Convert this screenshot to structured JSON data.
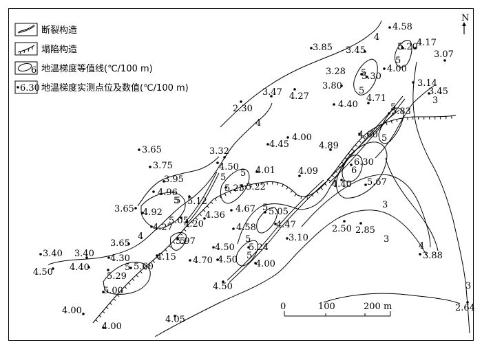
{
  "legend": {
    "fault": "断裂构造",
    "collapse": "塌陷构造",
    "isoline": "地温梯度等值线(℃/100 m)",
    "point": "地温梯度实测点位及数值(℃/100 m)",
    "isoline_sample": "6",
    "point_sample": "6.30"
  },
  "north": "N",
  "scale": {
    "labels": [
      "0",
      "100",
      "200 m"
    ]
  },
  "contour_labels": [
    "4",
    "4",
    "5",
    "5",
    "5",
    "5",
    "5",
    "5",
    "5",
    "5",
    "5",
    "5",
    "5",
    "5",
    "5",
    "6",
    "4",
    "3",
    "3",
    "3",
    "3",
    "4",
    "5",
    "5"
  ],
  "measurements": [
    "4.58",
    "3.85",
    "3.45",
    "5.20",
    "4.17",
    "3.07",
    "3.28",
    "5.30",
    "4.00",
    "3.47",
    "4.27",
    "3.80",
    "3.14",
    "3.45",
    "2.30",
    "4.40",
    "4.71",
    "5.83",
    "4.00",
    "4.45",
    "4.89",
    "4.60",
    "3.65",
    "3.32",
    "3.75",
    "4.50",
    "4.01",
    "4.09",
    "6.30",
    "3.95",
    "4.96",
    "5.25",
    "5.22",
    "4.40",
    "5.67",
    "5.12",
    "3.65",
    "4.92",
    "4.67",
    "5.05",
    "5.05",
    "4.27",
    "4.20",
    "4.36",
    "4.58",
    "4.47",
    "5.97",
    "3.10",
    "2.50",
    "2.85",
    "3.65",
    "4.50",
    "5.24",
    "3.40",
    "3.40",
    "4.30",
    "4.15",
    "4.70",
    "4.50",
    "4.40",
    "5.60",
    "4.00",
    "3.88",
    "4.50",
    "5.29",
    "4.50",
    "5.00",
    "4.00",
    "4.00",
    "4.05",
    "2.64"
  ]
}
